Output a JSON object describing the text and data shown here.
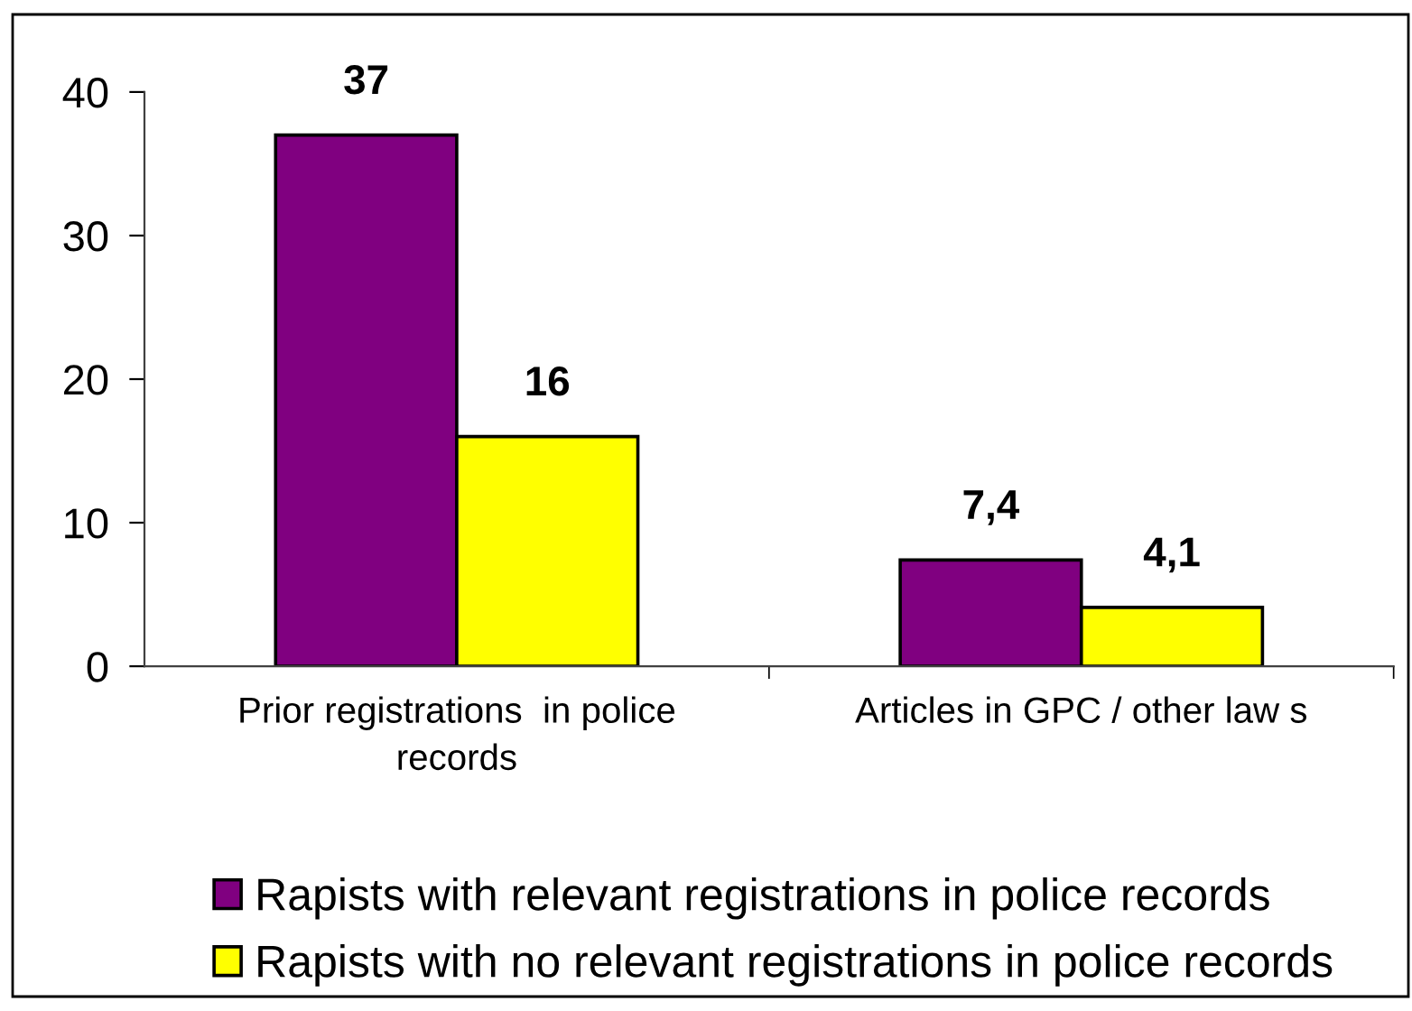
{
  "chart_data": {
    "type": "bar",
    "categories": [
      "Prior registrations  in police\nrecords",
      "Articles in GPC / other law s"
    ],
    "series": [
      {
        "name": "Rapists with relevant registrations in police records",
        "color": "#800080",
        "values": [
          37,
          7.4
        ],
        "value_labels": [
          "37",
          "7,4"
        ]
      },
      {
        "name": "Rapists with no relevant registrations in police records",
        "color": "#ffff00",
        "values": [
          16,
          4.1
        ],
        "value_labels": [
          "16",
          "4,1"
        ]
      }
    ],
    "ylim": [
      0,
      40
    ],
    "yticks": [
      0,
      10,
      20,
      30,
      40
    ],
    "grid": false,
    "legend": "bottom"
  }
}
